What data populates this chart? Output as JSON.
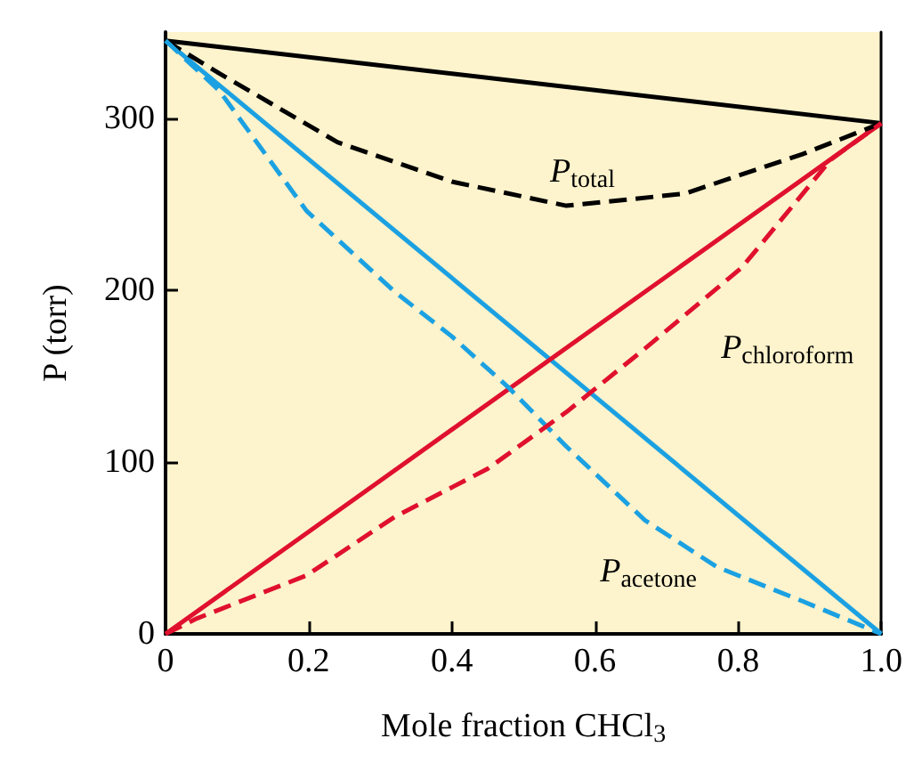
{
  "chart_data": {
    "type": "line",
    "xlabel": "Mole fraction CHCl$_{3}$",
    "ylabel": "P (torr)",
    "xlim": [
      0,
      1
    ],
    "ylim": [
      0,
      350
    ],
    "xticks": [
      0,
      0.2,
      0.4,
      0.6,
      0.8,
      {
        "value": 1,
        "label": "1.0"
      }
    ],
    "yticks": [
      0,
      100,
      200,
      300
    ],
    "grid": false,
    "series": [
      {
        "color": "#000000",
        "line_style": "solid",
        "x": [
          0,
          1
        ],
        "values": [
          345,
          297
        ]
      },
      {
        "color": "#1ba1e2",
        "line_style": "solid",
        "x": [
          0,
          1
        ],
        "values": [
          345,
          0
        ]
      },
      {
        "color": "#e0102f",
        "line_style": "solid",
        "x": [
          0,
          1
        ],
        "values": [
          0,
          297
        ]
      },
      {
        "color": "#000000",
        "line_style": "dashed",
        "x": [
          0,
          0.075,
          0.24,
          0.4,
          0.56,
          0.725,
          0.89,
          1
        ],
        "values": [
          345,
          326,
          286,
          263,
          249,
          256,
          279,
          297
        ]
      },
      {
        "color": "#1ba1e2",
        "line_style": "dashed",
        "x": [
          0,
          0.075,
          0.197,
          0.32,
          0.4,
          0.48,
          0.56,
          0.67,
          0.77,
          0.89,
          1
        ],
        "values": [
          345,
          316,
          246,
          199,
          173,
          143,
          109,
          66,
          39,
          19,
          0
        ]
      },
      {
        "color": "#e0102f",
        "line_style": "dashed",
        "x": [
          0,
          0.044,
          0.197,
          0.32,
          0.45,
          0.56,
          0.67,
          0.805,
          0.93,
          1
        ],
        "values": [
          0,
          9,
          34,
          68,
          96,
          129,
          166,
          213,
          276,
          297
        ]
      }
    ],
    "annotations": [
      "P$_{total}$",
      "P$_{chloroform}$",
      "P$_{acetone}$"
    ]
  }
}
